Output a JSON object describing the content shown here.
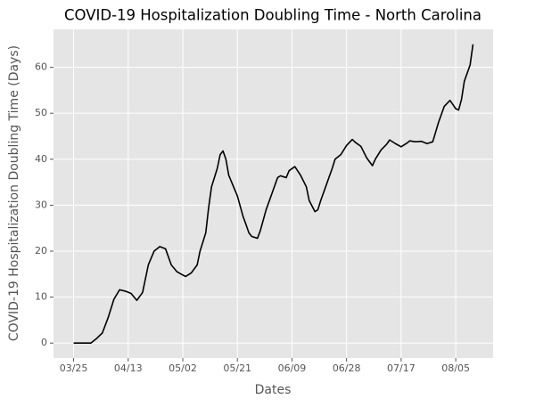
{
  "chart_data": {
    "type": "line",
    "title": "COVID-19 Hospitalization Doubling Time - North Carolina",
    "x_label": "Dates",
    "y_label": "COVID-19 Hospitalization Doubling Time (Days)",
    "x": [
      "03/25",
      "03/31",
      "04/02",
      "04/04",
      "04/06",
      "04/08",
      "04/10",
      "04/12",
      "04/14",
      "04/16",
      "04/18",
      "04/20",
      "04/22",
      "04/24",
      "04/26",
      "04/28",
      "04/30",
      "05/02",
      "05/03",
      "05/05",
      "05/07",
      "05/08",
      "05/10",
      "05/11",
      "05/12",
      "05/14",
      "05/15",
      "05/16",
      "05/17",
      "05/18",
      "05/21",
      "05/23",
      "05/24",
      "05/25",
      "05/26",
      "05/28",
      "05/29",
      "05/31",
      "06/02",
      "06/04",
      "06/05",
      "06/07",
      "06/08",
      "06/10",
      "06/12",
      "06/14",
      "06/15",
      "06/17",
      "06/18",
      "06/19",
      "06/21",
      "06/23",
      "06/24",
      "06/26",
      "06/28",
      "06/30",
      "07/01",
      "07/03",
      "07/05",
      "07/07",
      "07/08",
      "07/10",
      "07/12",
      "07/13",
      "07/15",
      "07/17",
      "07/19",
      "07/20",
      "07/22",
      "07/24",
      "07/26",
      "07/28",
      "07/30",
      "08/01",
      "08/03",
      "08/05",
      "08/06",
      "08/07",
      "08/08",
      "08/10",
      "08/11"
    ],
    "values": [
      0,
      0,
      1,
      2.2,
      5.5,
      9.5,
      11.6,
      11.3,
      10.8,
      9.3,
      11,
      17,
      20,
      21,
      20.5,
      17,
      15.5,
      14.8,
      14.5,
      15.3,
      17,
      20,
      24,
      29.5,
      34,
      38,
      41,
      41.8,
      40,
      36.5,
      32,
      27.5,
      25.8,
      24,
      23.2,
      22.8,
      24.5,
      29,
      32.5,
      36,
      36.4,
      36,
      37.5,
      38.4,
      36.5,
      34,
      31,
      28.6,
      29,
      31,
      34.5,
      38,
      40,
      41,
      43,
      44.3,
      43.7,
      42.8,
      40.3,
      38.6,
      40,
      42,
      43.3,
      44.2,
      43.4,
      42.7,
      43.5,
      44,
      43.8,
      43.9,
      43.4,
      43.8,
      48,
      51.5,
      52.8,
      51,
      50.7,
      53,
      57,
      60.5,
      65
    ],
    "color": "#000000",
    "xlim": [
      "03/18",
      "08/18"
    ],
    "xticks": [
      "03/25",
      "04/13",
      "05/02",
      "05/21",
      "06/09",
      "06/28",
      "07/17",
      "08/05"
    ],
    "ylim": [
      -3.25,
      68.25
    ],
    "yticks": [
      0,
      10,
      20,
      30,
      40,
      50,
      60
    ],
    "grid": true
  }
}
